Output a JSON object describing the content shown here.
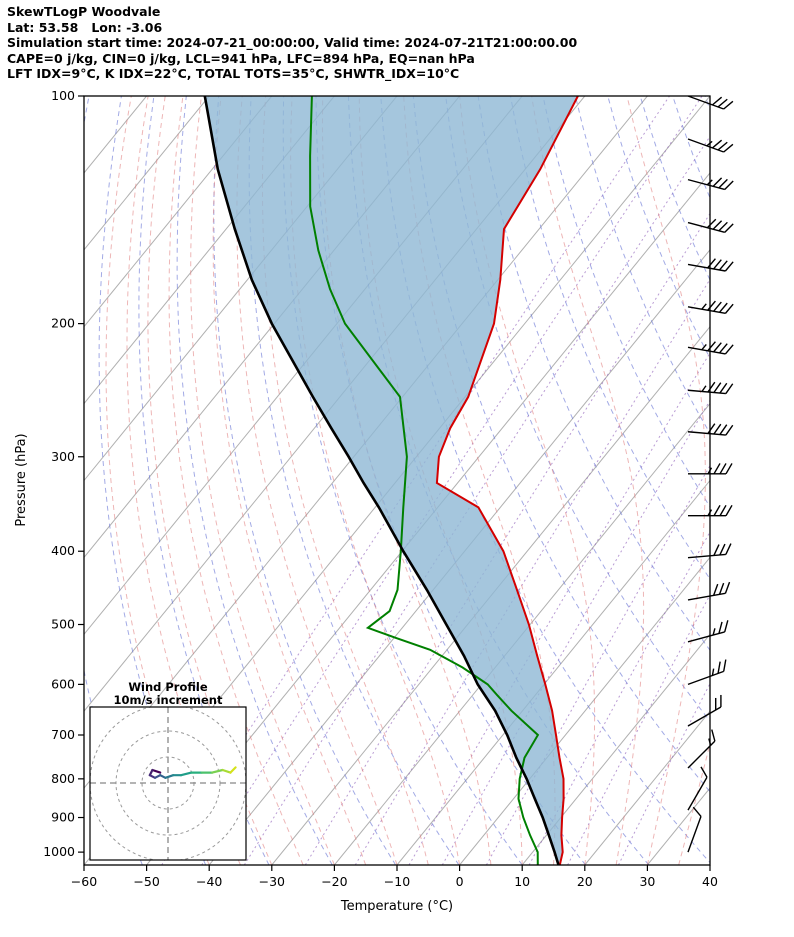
{
  "header": {
    "lines": [
      "SkewTLogP Woodvale",
      "Lat: 53.58   Lon: -3.06",
      "Simulation start time: 2024-07-21_00:00:00, Valid time: 2024-07-21T21:00:00.00",
      "CAPE=0 j/kg, CIN=0 j/kg, LCL=941 hPa, LFC=894 hPa, EQ=nan hPa",
      "LFT IDX=9°C, K IDX=22°C, TOTAL TOTS=35°C, SHWTR_IDX=10°C"
    ]
  },
  "chart_data": {
    "type": "skewt-logp",
    "xlabel": "Temperature (°C)",
    "ylabel": "Pressure (hPa)",
    "x_ticks": [
      -60,
      -50,
      -40,
      -30,
      -20,
      -10,
      0,
      10,
      20,
      30,
      40
    ],
    "x_tick_labels": [
      "−60",
      "−50",
      "−40",
      "−30",
      "−20",
      "−10",
      "0",
      "10",
      "20",
      "30",
      "40"
    ],
    "y_ticks": [
      100,
      200,
      300,
      400,
      500,
      600,
      700,
      800,
      900,
      1000
    ],
    "p_top": 100,
    "p_bottom": 1040,
    "t_min": -60,
    "t_max": 40,
    "skew_c_over_full_depth": 100,
    "background": {
      "isotherm_color": "#b0b0b0",
      "isotherm_range": [
        -160,
        40
      ],
      "isotherm_step": 10,
      "dry_adiabats": {
        "color": "#6673d4",
        "theta_start": 210,
        "theta_end": 410,
        "step": 10
      },
      "moist_adiabats": {
        "color": "#e07b7b",
        "t_start": -40,
        "t_end": 40,
        "step": 5
      },
      "mixing_lines": {
        "color": "#9467bd",
        "values_g_kg": [
          0.05,
          0.1,
          0.2,
          0.5,
          1,
          2,
          3,
          5,
          8,
          12,
          20
        ]
      }
    },
    "shading": {
      "color": "#8fb8d4",
      "opacity": 0.8,
      "between": [
        "parcel",
        "temperature"
      ]
    },
    "series": {
      "temperature": {
        "color": "#d40000",
        "pressures": [
          1040,
          1000,
          950,
          900,
          850,
          800,
          750,
          700,
          650,
          600,
          550,
          500,
          450,
          400,
          350,
          325,
          300,
          275,
          250,
          200,
          175,
          150,
          125,
          100
        ],
        "values_c": [
          16.0,
          14.8,
          12.4,
          10.2,
          8.0,
          5.4,
          2.0,
          -1.5,
          -5.3,
          -9.8,
          -14.8,
          -20.2,
          -26.6,
          -33.8,
          -43.5,
          -53.3,
          -56.4,
          -58.3,
          -59.5,
          -64.9,
          -69.6,
          -75.6,
          -77.6,
          -81.1
        ]
      },
      "parcel": {
        "color": "#000000",
        "pressures": [
          1040,
          1000,
          950,
          900,
          850,
          800,
          750,
          700,
          650,
          600,
          550,
          500,
          450,
          400,
          350,
          325,
          300,
          275,
          250,
          200,
          175,
          150,
          125,
          100
        ],
        "values_c": [
          15.8,
          13.5,
          10.4,
          7.1,
          3.4,
          -0.5,
          -4.9,
          -9.3,
          -14.4,
          -20.6,
          -26.5,
          -33.4,
          -41.0,
          -49.8,
          -59.4,
          -65.0,
          -70.8,
          -77.3,
          -84.3,
          -100.4,
          -109.3,
          -118.6,
          -129.1,
          -140.7
        ]
      },
      "dewpoint": {
        "color": "#008000",
        "pressures": [
          1040,
          1000,
          950,
          900,
          850,
          800,
          750,
          700,
          650,
          620,
          600,
          570,
          540,
          520,
          505,
          480,
          450,
          400,
          350,
          300,
          250,
          200,
          180,
          160,
          140,
          120,
          100
        ],
        "values_c": [
          12.5,
          10.8,
          7.4,
          4.0,
          0.8,
          -1.6,
          -3.6,
          -4.4,
          -11.8,
          -16.1,
          -19.0,
          -25.2,
          -32.7,
          -40.0,
          -45.5,
          -44.2,
          -45.7,
          -50.2,
          -55.5,
          -61.5,
          -70.4,
          -88.7,
          -95.6,
          -102.5,
          -109.5,
          -116.1,
          -123.6
        ]
      }
    },
    "wind_barbs": {
      "color": "#000000",
      "units": "kt",
      "levels": [
        {
          "p": 1000,
          "spd_kt": 10,
          "dir": 200
        },
        {
          "p": 880,
          "spd_kt": 10,
          "dir": 210
        },
        {
          "p": 774,
          "spd_kt": 15,
          "dir": 225
        },
        {
          "p": 681,
          "spd_kt": 20,
          "dir": 240
        },
        {
          "p": 600,
          "spd_kt": 25,
          "dir": 250
        },
        {
          "p": 527,
          "spd_kt": 25,
          "dir": 255
        },
        {
          "p": 464,
          "spd_kt": 30,
          "dir": 260
        },
        {
          "p": 408,
          "spd_kt": 30,
          "dir": 265
        },
        {
          "p": 359,
          "spd_kt": 35,
          "dir": 270
        },
        {
          "p": 316,
          "spd_kt": 35,
          "dir": 270
        },
        {
          "p": 278,
          "spd_kt": 40,
          "dir": 275
        },
        {
          "p": 245,
          "spd_kt": 45,
          "dir": 275
        },
        {
          "p": 215,
          "spd_kt": 45,
          "dir": 280
        },
        {
          "p": 190,
          "spd_kt": 45,
          "dir": 280
        },
        {
          "p": 167,
          "spd_kt": 40,
          "dir": 280
        },
        {
          "p": 147,
          "spd_kt": 40,
          "dir": 285
        },
        {
          "p": 129,
          "spd_kt": 35,
          "dir": 285
        },
        {
          "p": 114,
          "spd_kt": 35,
          "dir": 290
        },
        {
          "p": 100,
          "spd_kt": 30,
          "dir": 290
        }
      ]
    },
    "hodograph": {
      "title": "Wind Profile",
      "subtitle": "10m/s increment",
      "rings_ms": [
        10,
        20,
        30
      ],
      "points": [
        {
          "u": -3,
          "v": 4
        },
        {
          "u": -6,
          "v": 5
        },
        {
          "u": -7,
          "v": 3
        },
        {
          "u": -5,
          "v": 2
        },
        {
          "u": -3,
          "v": 3
        },
        {
          "u": -1,
          "v": 2
        },
        {
          "u": 2,
          "v": 3
        },
        {
          "u": 5,
          "v": 3
        },
        {
          "u": 9,
          "v": 4
        },
        {
          "u": 13,
          "v": 4
        },
        {
          "u": 17,
          "v": 4
        },
        {
          "u": 21,
          "v": 5
        },
        {
          "u": 24,
          "v": 4
        },
        {
          "u": 26,
          "v": 6
        }
      ],
      "palette": [
        "#440154",
        "#46216e",
        "#472f7d",
        "#3d4e8a",
        "#32608d",
        "#2a788e",
        "#228b8d",
        "#1f9e89",
        "#2ab07f",
        "#4cc26c",
        "#7ad151",
        "#a8db34",
        "#d4e21a"
      ]
    }
  }
}
